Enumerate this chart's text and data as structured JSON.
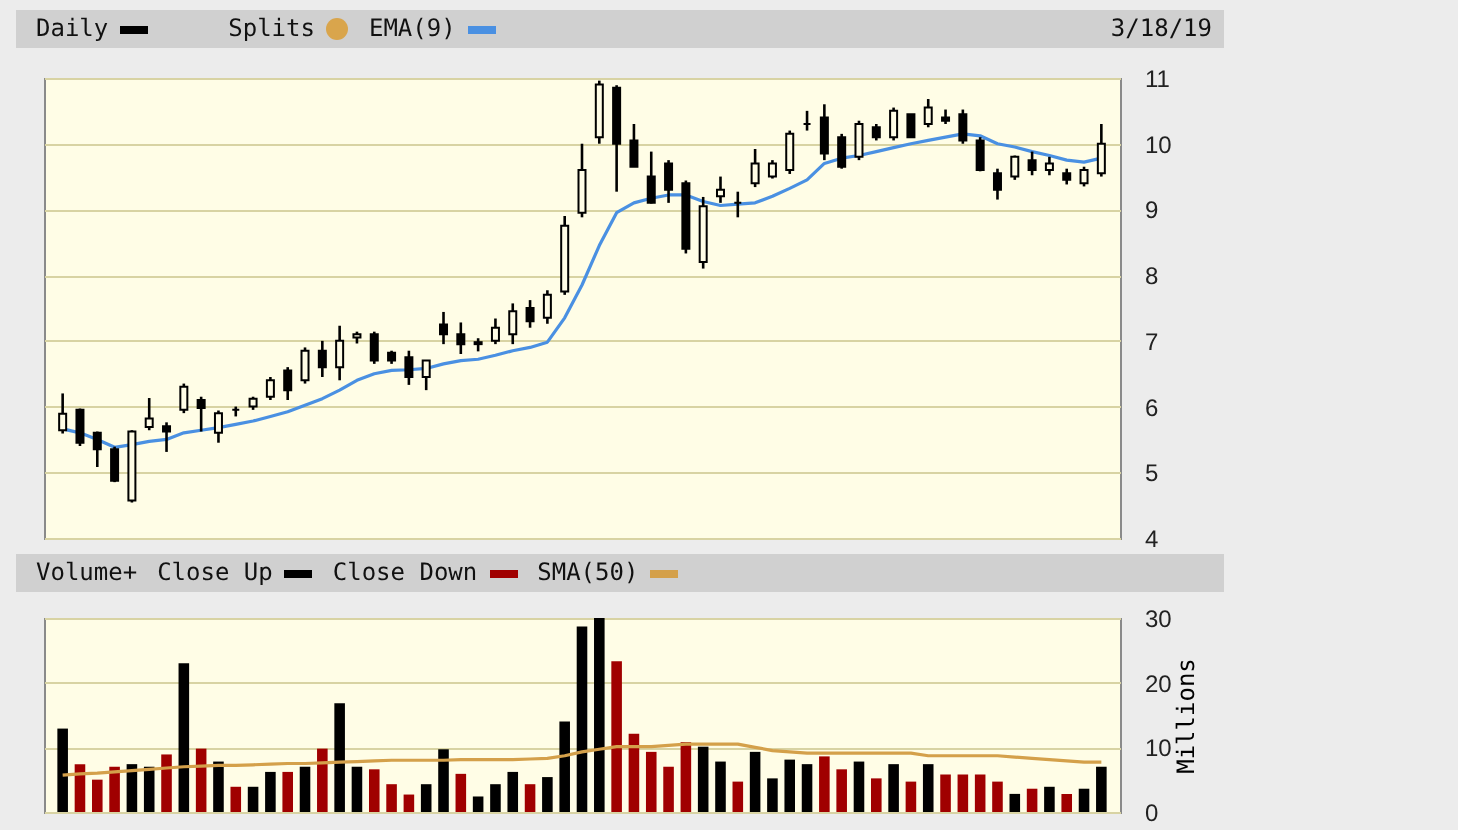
{
  "chart_data": [
    {
      "type": "candlestick",
      "categories": [
        null,
        null,
        null,
        null,
        null,
        null,
        null,
        null,
        null,
        null,
        null,
        null,
        null,
        null,
        null,
        null,
        null,
        null,
        null,
        null,
        null,
        null,
        null,
        null,
        null,
        null,
        null,
        null,
        null,
        null,
        null,
        null,
        null,
        null,
        null,
        null,
        null,
        null,
        null,
        null,
        null,
        null,
        null,
        null,
        null,
        null,
        null,
        null,
        null,
        null,
        null,
        null,
        null,
        null,
        null,
        null,
        null,
        null,
        null,
        null,
        null
      ],
      "series": [
        {
          "name": "Daily",
          "type": "candlestick",
          "color": "#000000",
          "ohlc": [
            [
              5.64,
              6.2,
              5.59,
              5.89
            ],
            [
              5.95,
              5.97,
              5.4,
              5.45
            ],
            [
              5.6,
              5.62,
              5.08,
              5.35
            ],
            [
              5.35,
              5.39,
              4.85,
              4.87
            ],
            [
              4.57,
              5.64,
              4.54,
              5.62
            ],
            [
              5.69,
              6.13,
              5.64,
              5.82
            ],
            [
              5.7,
              5.76,
              5.31,
              5.62
            ],
            [
              5.95,
              6.35,
              5.9,
              6.3
            ],
            [
              6.1,
              6.15,
              5.62,
              5.98
            ],
            [
              5.6,
              5.94,
              5.45,
              5.9
            ],
            [
              5.95,
              6.0,
              5.85,
              5.95
            ],
            [
              6.0,
              6.15,
              5.95,
              6.12
            ],
            [
              6.15,
              6.45,
              6.1,
              6.4
            ],
            [
              6.55,
              6.6,
              6.1,
              6.25
            ],
            [
              6.4,
              6.9,
              6.35,
              6.85
            ],
            [
              6.85,
              7.0,
              6.45,
              6.6
            ],
            [
              6.6,
              7.23,
              6.4,
              7.0
            ],
            [
              7.05,
              7.14,
              6.96,
              7.1
            ],
            [
              7.1,
              7.14,
              6.65,
              6.7
            ],
            [
              6.82,
              6.85,
              6.65,
              6.7
            ],
            [
              6.75,
              6.85,
              6.33,
              6.45
            ],
            [
              6.45,
              6.7,
              6.25,
              6.7
            ],
            [
              7.25,
              7.44,
              6.95,
              7.1
            ],
            [
              7.1,
              7.28,
              6.8,
              6.95
            ],
            [
              6.95,
              7.04,
              6.84,
              6.98
            ],
            [
              7.0,
              7.34,
              6.95,
              7.2
            ],
            [
              7.1,
              7.57,
              6.95,
              7.45
            ],
            [
              7.5,
              7.62,
              7.2,
              7.3
            ],
            [
              7.35,
              7.77,
              7.26,
              7.7
            ],
            [
              7.75,
              8.9,
              7.7,
              8.75
            ],
            [
              8.95,
              10.0,
              8.88,
              9.6
            ],
            [
              10.1,
              10.96,
              10.0,
              10.9
            ],
            [
              10.85,
              10.89,
              9.27,
              10.0
            ],
            [
              10.05,
              10.3,
              9.65,
              9.65
            ],
            [
              9.5,
              9.88,
              9.09,
              9.1
            ],
            [
              9.7,
              9.75,
              9.1,
              9.3
            ],
            [
              9.4,
              9.44,
              8.33,
              8.4
            ],
            [
              8.2,
              9.19,
              8.1,
              9.05
            ],
            [
              9.2,
              9.5,
              9.1,
              9.3
            ],
            [
              9.1,
              9.27,
              8.88,
              9.1
            ],
            [
              9.4,
              9.92,
              9.34,
              9.7
            ],
            [
              9.5,
              9.75,
              9.47,
              9.7
            ],
            [
              9.6,
              10.2,
              9.54,
              10.15
            ],
            [
              10.3,
              10.5,
              10.2,
              10.3
            ],
            [
              10.4,
              10.6,
              9.75,
              9.85
            ],
            [
              10.1,
              10.15,
              9.62,
              9.65
            ],
            [
              9.8,
              10.35,
              9.75,
              10.3
            ],
            [
              10.25,
              10.3,
              10.05,
              10.1
            ],
            [
              10.1,
              10.55,
              10.05,
              10.5
            ],
            [
              10.45,
              10.45,
              10.1,
              10.1
            ],
            [
              10.3,
              10.68,
              10.25,
              10.55
            ],
            [
              10.4,
              10.52,
              10.3,
              10.35
            ],
            [
              10.45,
              10.52,
              10.0,
              10.05
            ],
            [
              10.05,
              10.1,
              9.58,
              9.6
            ],
            [
              9.55,
              9.62,
              9.15,
              9.3
            ],
            [
              9.5,
              9.82,
              9.45,
              9.8
            ],
            [
              9.75,
              9.88,
              9.52,
              9.6
            ],
            [
              9.6,
              9.8,
              9.52,
              9.7
            ],
            [
              9.55,
              9.62,
              9.38,
              9.45
            ],
            [
              9.4,
              9.65,
              9.35,
              9.6
            ],
            [
              9.55,
              10.3,
              9.5,
              10.0
            ]
          ]
        },
        {
          "name": "EMA(9)",
          "type": "line",
          "color": "#4a90e2",
          "values": [
            5.66,
            5.6,
            5.5,
            5.38,
            5.42,
            5.47,
            5.5,
            5.6,
            5.64,
            5.68,
            5.73,
            5.78,
            5.85,
            5.92,
            6.02,
            6.12,
            6.25,
            6.4,
            6.5,
            6.55,
            6.56,
            6.58,
            6.65,
            6.7,
            6.72,
            6.78,
            6.85,
            6.9,
            6.98,
            7.35,
            7.85,
            8.45,
            8.95,
            9.1,
            9.17,
            9.22,
            9.22,
            9.12,
            9.06,
            9.08,
            9.1,
            9.2,
            9.32,
            9.45,
            9.7,
            9.78,
            9.82,
            9.88,
            9.94,
            10.0,
            10.05,
            10.1,
            10.15,
            10.12,
            10.0,
            9.95,
            9.88,
            9.82,
            9.75,
            9.72,
            9.78
          ]
        }
      ],
      "ylim": [
        4,
        11
      ],
      "yticks": [
        4,
        5,
        6,
        7,
        8,
        9,
        10,
        11
      ],
      "grid": "y",
      "tick_labels": "y",
      "legend": "top",
      "annotations": [
        "Splits",
        "3/18/19"
      ]
    },
    {
      "type": "bar",
      "legend_title": "Volume+",
      "ylabel": "Millions",
      "categories": [
        null,
        null,
        null,
        null,
        null,
        null,
        null,
        null,
        null,
        null,
        null,
        null,
        null,
        null,
        null,
        null,
        null,
        null,
        null,
        null,
        null,
        null,
        null,
        null,
        null,
        null,
        null,
        null,
        null,
        null,
        null,
        null,
        null,
        null,
        null,
        null,
        null,
        null,
        null,
        null,
        null,
        null,
        null,
        null,
        null,
        null,
        null,
        null,
        null,
        null,
        null,
        null,
        null,
        null,
        null,
        null,
        null,
        null,
        null,
        null,
        null
      ],
      "series": [
        {
          "name": "Close Up",
          "color": "#000000",
          "values": [
            12.9,
            null,
            null,
            null,
            7.4,
            7.0,
            null,
            23.0,
            null,
            7.8,
            null,
            3.9,
            6.2,
            null,
            7.0,
            null,
            16.8,
            7.0,
            null,
            null,
            null,
            4.3,
            9.7,
            null,
            2.4,
            4.3,
            6.2,
            null,
            5.4,
            14.0,
            28.7,
            30,
            null,
            null,
            null,
            null,
            null,
            10.1,
            7.8,
            null,
            9.3,
            5.2,
            8.1,
            7.4,
            null,
            null,
            7.8,
            null,
            7.4,
            null,
            7.4,
            null,
            null,
            null,
            null,
            2.8,
            null,
            3.9,
            null,
            3.6,
            7.0
          ]
        },
        {
          "name": "Close Down",
          "color": "#a00000",
          "values": [
            null,
            7.4,
            5.0,
            7.0,
            null,
            null,
            8.9,
            null,
            9.8,
            null,
            3.9,
            null,
            null,
            6.2,
            null,
            9.8,
            null,
            null,
            6.6,
            4.3,
            2.7,
            null,
            null,
            5.9,
            null,
            null,
            null,
            4.3,
            null,
            null,
            null,
            null,
            23.3,
            12.1,
            9.3,
            7.0,
            10.8,
            null,
            null,
            4.7,
            null,
            null,
            null,
            null,
            8.6,
            6.6,
            null,
            5.2,
            null,
            4.7,
            null,
            5.8,
            5.8,
            5.8,
            4.7,
            null,
            3.6,
            null,
            2.8,
            null,
            null
          ]
        },
        {
          "name": "SMA(50)",
          "type": "line",
          "color": "#d4a04a",
          "values": [
            5.7,
            5.9,
            6.0,
            6.2,
            6.4,
            6.6,
            6.8,
            7.0,
            7.1,
            7.2,
            7.2,
            7.3,
            7.4,
            7.5,
            7.5,
            7.6,
            7.7,
            7.8,
            7.9,
            8.0,
            8.0,
            8.0,
            8.0,
            8.1,
            8.1,
            8.1,
            8.1,
            8.2,
            8.3,
            8.7,
            9.3,
            9.7,
            10.1,
            10.1,
            10.1,
            10.3,
            10.5,
            10.5,
            10.5,
            10.5,
            10.0,
            9.5,
            9.3,
            9.1,
            9.1,
            9.1,
            9.1,
            9.1,
            9.1,
            9.1,
            8.7,
            8.7,
            8.7,
            8.7,
            8.7,
            8.5,
            8.3,
            8.1,
            7.9,
            7.7,
            7.7
          ]
        }
      ],
      "ylim": [
        0,
        30
      ],
      "yticks": [
        0,
        10,
        20,
        30
      ],
      "grid": "y",
      "tick_labels": "y",
      "legend": "top"
    }
  ]
}
